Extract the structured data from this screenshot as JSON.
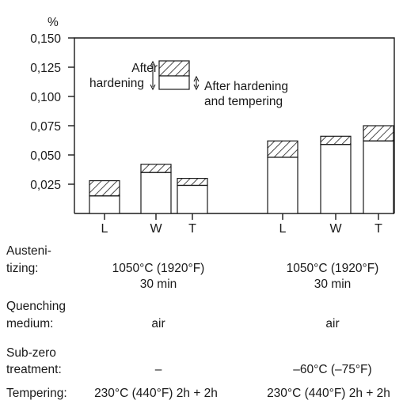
{
  "chart_data": {
    "type": "bar",
    "ylabel": "%",
    "ylim": [
      0,
      0.15
    ],
    "yticks": [
      "0,150",
      "0,125",
      "0,100",
      "0,075",
      "0,050",
      "0,025"
    ],
    "categories": [
      "L",
      "W",
      "T",
      "L",
      "W",
      "T"
    ],
    "series": [
      {
        "name": "After hardening and tempering",
        "values": [
          0.015,
          0.035,
          0.024,
          0.048,
          0.059,
          0.062
        ]
      },
      {
        "name": "After hardening",
        "values": [
          0.028,
          0.042,
          0.03,
          0.062,
          0.066,
          0.075
        ]
      }
    ],
    "legend": {
      "after_hardening": [
        "After",
        "hardening"
      ],
      "after_hardening_tempering": [
        "After hardening",
        "and tempering"
      ]
    },
    "stacked_overlay": true
  },
  "conditions": {
    "austenitizing": {
      "label": [
        "Austeni-",
        "tizing:"
      ],
      "group1": [
        "1050°C (1920°F)",
        "30 min"
      ],
      "group2": [
        "1050°C (1920°F)",
        "30 min"
      ]
    },
    "quenching": {
      "label": [
        "Quenching",
        "medium:"
      ],
      "group1": "air",
      "group2": "air"
    },
    "subzero": {
      "label": [
        "Sub-zero",
        "treatment:"
      ],
      "group1": "–",
      "group2": "–60°C (–75°F)"
    },
    "tempering": {
      "label": "Tempering:",
      "group1": "230°C (440°F) 2h + 2h",
      "group2": "230°C (440°F) 2h + 2h"
    }
  }
}
